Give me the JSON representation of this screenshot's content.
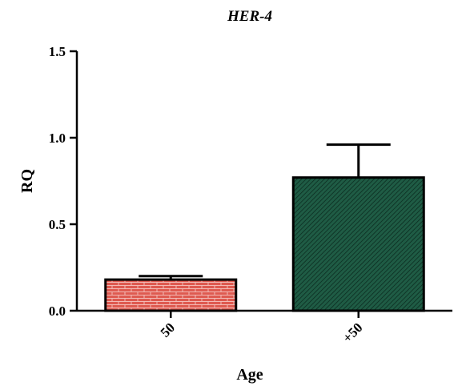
{
  "chart_data": {
    "type": "bar",
    "title": "HER-4",
    "xlabel": "Age",
    "ylabel": "RQ",
    "categories": [
      "50",
      "+50"
    ],
    "values": [
      0.18,
      0.77
    ],
    "error_upper": [
      0.2,
      0.96
    ],
    "ylim": [
      0,
      1.5
    ],
    "yticks": [
      {
        "value": 0.0,
        "label": "0.0"
      },
      {
        "value": 0.5,
        "label": "0.5"
      },
      {
        "value": 1.0,
        "label": "1.0"
      },
      {
        "value": 1.5,
        "label": "1.5"
      }
    ],
    "colors": [
      "#d9534a",
      "#1f5c45"
    ],
    "patterns": [
      "brick",
      "diagonal-hatch"
    ],
    "grid": false,
    "legend": "none"
  }
}
